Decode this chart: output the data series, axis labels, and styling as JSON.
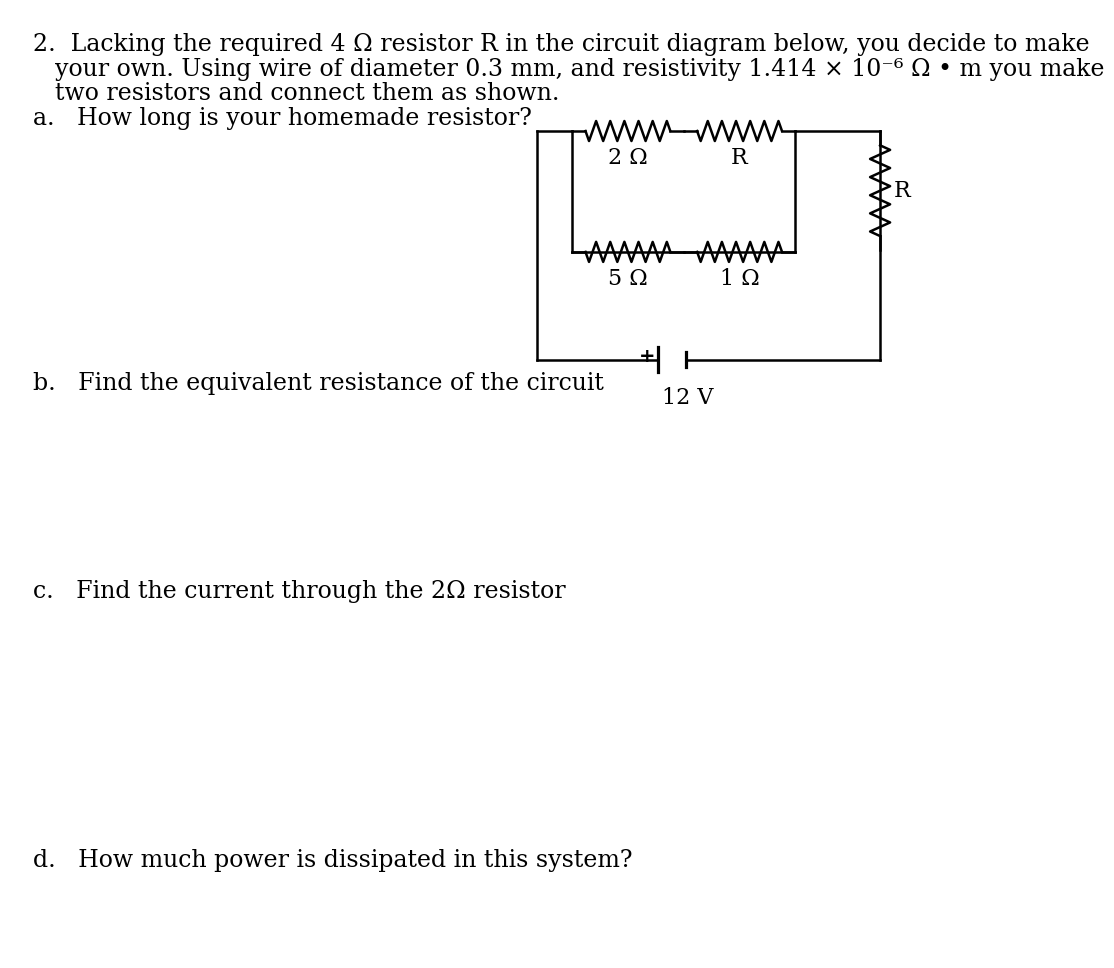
{
  "background_color": "#ffffff",
  "text_color": "#000000",
  "line1_num": "2.",
  "line1_text": "Lacking the required 4 Ω resistor R in the circuit diagram below, you decide to make",
  "line2_text": "your own. Using wire of diameter 0.3 mm, and resistivity 1.414 × 10⁻⁶ Ω • m you make",
  "line3_text": "two resistors and connect them as shown.",
  "line4_text": "a.   How long is your homemade resistor?",
  "line_b": "b.   Find the equivalent resistance of the circuit",
  "line_c": "c.   Find the current through the 2Ω resistor",
  "line_d": "d.   How much power is dissipated in this system?",
  "font_size": 17,
  "circuit": {
    "label_2ohm": "2 Ω",
    "label_R_top": "R",
    "label_5ohm": "5 Ω",
    "label_1ohm": "1 Ω",
    "label_R_right": "R",
    "label_12V": "12 V"
  }
}
